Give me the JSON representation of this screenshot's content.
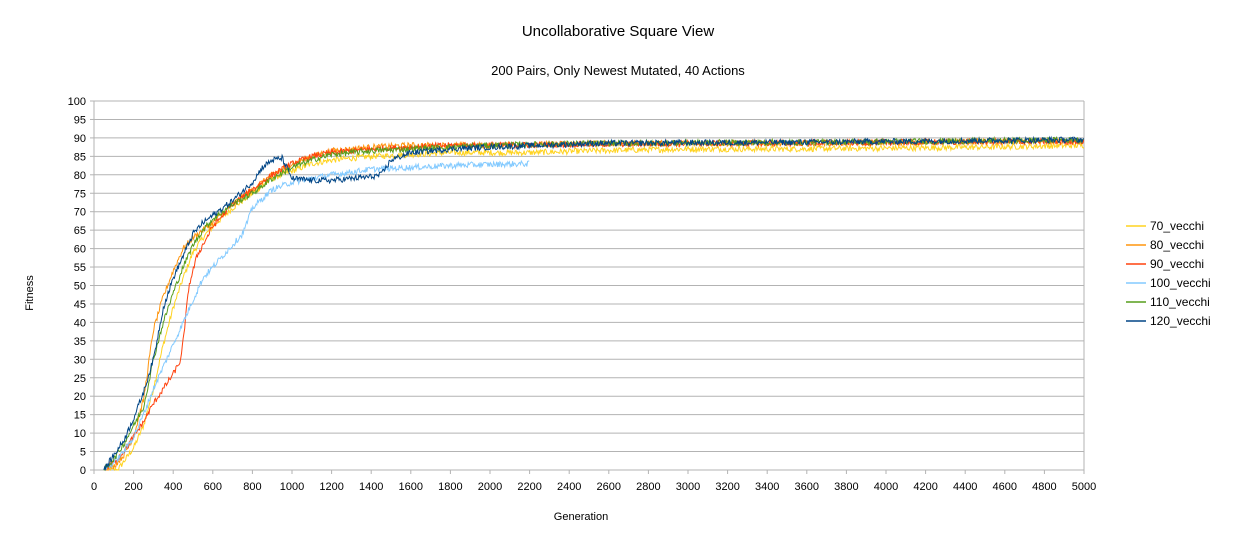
{
  "chart_data": {
    "type": "line",
    "title": "Uncollaborative Square View",
    "subtitle": "200 Pairs, Only Newest Mutated, 40 Actions",
    "xlabel": "Generation",
    "ylabel": "Fitness",
    "xlim": [
      0,
      5000
    ],
    "ylim": [
      0,
      100
    ],
    "x_ticks": [
      0,
      200,
      400,
      600,
      800,
      1000,
      1200,
      1400,
      1600,
      1800,
      2000,
      2200,
      2400,
      2600,
      2800,
      3000,
      3200,
      3400,
      3600,
      3800,
      4000,
      4200,
      4400,
      4600,
      4800,
      5000
    ],
    "y_ticks": [
      0,
      5,
      10,
      15,
      20,
      25,
      30,
      35,
      40,
      45,
      50,
      55,
      60,
      65,
      70,
      75,
      80,
      85,
      90,
      95,
      100
    ],
    "grid": "horizontal",
    "legend_position": "right",
    "series": [
      {
        "name": "70_vecchi",
        "color": "#ffd320",
        "points": [
          [
            60,
            0
          ],
          [
            120,
            0
          ],
          [
            200,
            6
          ],
          [
            250,
            12
          ],
          [
            300,
            22
          ],
          [
            350,
            34
          ],
          [
            400,
            44
          ],
          [
            450,
            52
          ],
          [
            500,
            59
          ],
          [
            550,
            63
          ],
          [
            600,
            66
          ],
          [
            700,
            71
          ],
          [
            800,
            75
          ],
          [
            900,
            79
          ],
          [
            1000,
            81
          ],
          [
            1100,
            83
          ],
          [
            1200,
            84
          ],
          [
            1400,
            85
          ],
          [
            1600,
            85.5
          ],
          [
            1800,
            86
          ],
          [
            2000,
            86
          ],
          [
            2200,
            86
          ],
          [
            2500,
            86.5
          ],
          [
            3000,
            87
          ],
          [
            3500,
            87
          ],
          [
            4000,
            87.2
          ],
          [
            4500,
            87.5
          ],
          [
            5000,
            88
          ]
        ]
      },
      {
        "name": "80_vecchi",
        "color": "#ff950e",
        "points": [
          [
            50,
            0
          ],
          [
            100,
            1
          ],
          [
            150,
            4
          ],
          [
            200,
            9
          ],
          [
            250,
            19
          ],
          [
            300,
            38
          ],
          [
            350,
            47
          ],
          [
            400,
            54
          ],
          [
            450,
            60
          ],
          [
            500,
            63
          ],
          [
            600,
            67
          ],
          [
            700,
            72
          ],
          [
            800,
            76
          ],
          [
            900,
            80
          ],
          [
            1000,
            83
          ],
          [
            1100,
            85
          ],
          [
            1200,
            86.5
          ],
          [
            1400,
            87.5
          ],
          [
            1600,
            88
          ],
          [
            1800,
            88
          ],
          [
            2000,
            88
          ],
          [
            2500,
            88.5
          ],
          [
            3000,
            88.5
          ],
          [
            3500,
            88.5
          ],
          [
            4000,
            88.7
          ],
          [
            4500,
            89
          ],
          [
            5000,
            89
          ]
        ]
      },
      {
        "name": "90_vecchi",
        "color": "#ff420e",
        "points": [
          [
            50,
            0
          ],
          [
            100,
            2
          ],
          [
            150,
            5
          ],
          [
            200,
            9
          ],
          [
            250,
            13
          ],
          [
            300,
            18
          ],
          [
            350,
            22
          ],
          [
            400,
            26
          ],
          [
            440,
            30
          ],
          [
            460,
            40
          ],
          [
            480,
            50
          ],
          [
            520,
            58
          ],
          [
            560,
            62
          ],
          [
            600,
            66
          ],
          [
            700,
            72
          ],
          [
            800,
            76
          ],
          [
            900,
            80
          ],
          [
            1000,
            83
          ],
          [
            1100,
            85
          ],
          [
            1200,
            86
          ],
          [
            1400,
            87
          ],
          [
            1600,
            87.5
          ],
          [
            1800,
            88
          ],
          [
            2000,
            88
          ],
          [
            2500,
            88.3
          ],
          [
            3000,
            88.5
          ],
          [
            3500,
            88.6
          ],
          [
            4000,
            88.8
          ],
          [
            4500,
            89
          ],
          [
            5000,
            89
          ]
        ]
      },
      {
        "name": "100_vecchi",
        "color": "#83caff",
        "points": [
          [
            50,
            0
          ],
          [
            100,
            2
          ],
          [
            150,
            5
          ],
          [
            200,
            9
          ],
          [
            250,
            15
          ],
          [
            300,
            22
          ],
          [
            350,
            28
          ],
          [
            400,
            34
          ],
          [
            450,
            40
          ],
          [
            500,
            46
          ],
          [
            550,
            52
          ],
          [
            600,
            55
          ],
          [
            650,
            58
          ],
          [
            700,
            61
          ],
          [
            750,
            64
          ],
          [
            780,
            68
          ],
          [
            800,
            71
          ],
          [
            900,
            76
          ],
          [
            1000,
            78
          ],
          [
            1100,
            79
          ],
          [
            1200,
            80
          ],
          [
            1400,
            81.5
          ],
          [
            1600,
            82
          ],
          [
            1800,
            82.5
          ],
          [
            2000,
            82.8
          ],
          [
            2200,
            83
          ]
        ]
      },
      {
        "name": "110_vecchi",
        "color": "#579d1c",
        "points": [
          [
            50,
            0
          ],
          [
            100,
            3
          ],
          [
            150,
            7
          ],
          [
            200,
            12
          ],
          [
            250,
            17
          ],
          [
            300,
            30
          ],
          [
            350,
            40
          ],
          [
            400,
            48
          ],
          [
            450,
            55
          ],
          [
            500,
            61
          ],
          [
            550,
            65
          ],
          [
            600,
            68
          ],
          [
            700,
            72
          ],
          [
            800,
            75
          ],
          [
            900,
            79
          ],
          [
            1000,
            82
          ],
          [
            1100,
            84
          ],
          [
            1200,
            85.5
          ],
          [
            1400,
            86.5
          ],
          [
            1600,
            87
          ],
          [
            1800,
            87.5
          ],
          [
            2000,
            88
          ],
          [
            2500,
            88.5
          ],
          [
            3000,
            88.7
          ],
          [
            3500,
            88.8
          ],
          [
            4000,
            89
          ],
          [
            4500,
            89.2
          ],
          [
            5000,
            89.5
          ]
        ]
      },
      {
        "name": "120_vecchi",
        "color": "#004586",
        "points": [
          [
            50,
            0
          ],
          [
            100,
            4
          ],
          [
            150,
            8
          ],
          [
            200,
            14
          ],
          [
            250,
            21
          ],
          [
            300,
            30
          ],
          [
            350,
            44
          ],
          [
            400,
            52
          ],
          [
            450,
            58
          ],
          [
            500,
            64
          ],
          [
            550,
            67
          ],
          [
            600,
            69
          ],
          [
            700,
            73
          ],
          [
            800,
            78
          ],
          [
            850,
            82
          ],
          [
            900,
            84
          ],
          [
            950,
            84.5
          ],
          [
            1000,
            79
          ],
          [
            1100,
            78.5
          ],
          [
            1200,
            78.5
          ],
          [
            1300,
            79
          ],
          [
            1400,
            79.5
          ],
          [
            1450,
            80
          ],
          [
            1500,
            84
          ],
          [
            1600,
            86
          ],
          [
            1800,
            87
          ],
          [
            2000,
            87.5
          ],
          [
            2500,
            88.5
          ],
          [
            3000,
            88.7
          ],
          [
            3500,
            88.8
          ],
          [
            4000,
            89
          ],
          [
            4500,
            89.3
          ],
          [
            5000,
            89.5
          ]
        ]
      }
    ]
  }
}
